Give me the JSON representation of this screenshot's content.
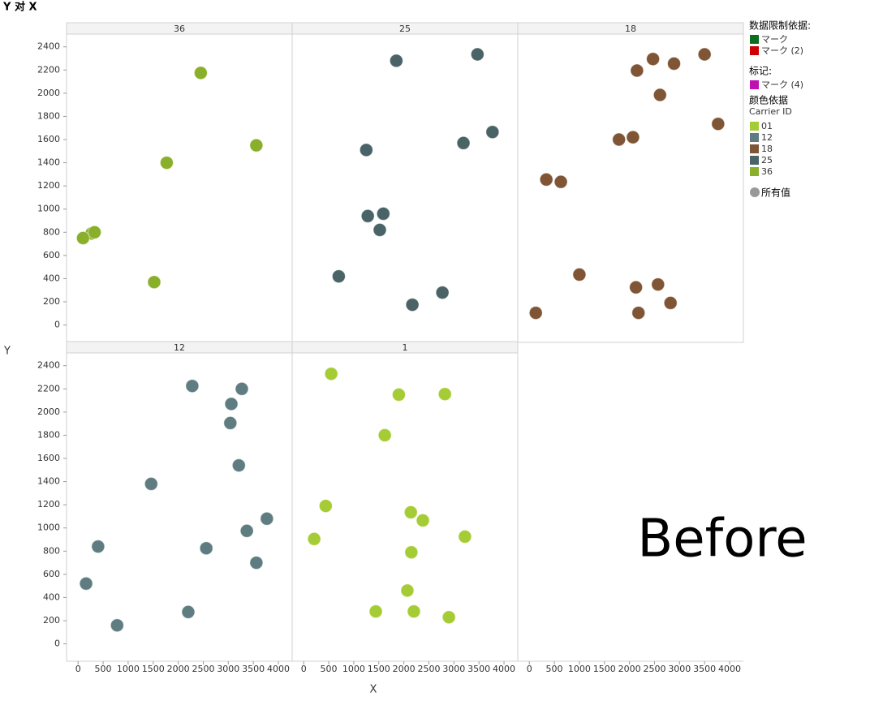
{
  "title": "Y 对 X",
  "x_label": "X",
  "y_label": "Y",
  "annotation": "Before",
  "legend": {
    "filter_title": "数据限制依据:",
    "filter_items": [
      {
        "label": "マーク",
        "color": "#0a6e1e"
      },
      {
        "label": "マーク (2)",
        "color": "#cc0000"
      }
    ],
    "mark_title": "标记:",
    "mark_items": [
      {
        "label": "マーク (4)",
        "color": "#c010b0"
      }
    ],
    "color_title": "颜色依据",
    "color_field": "Carrier ID",
    "color_items": [
      {
        "label": "01",
        "color": "#a6cc35"
      },
      {
        "label": "12",
        "color": "#5f7d80"
      },
      {
        "label": "18",
        "color": "#7f5535"
      },
      {
        "label": "25",
        "color": "#4a6366"
      },
      {
        "label": "36",
        "color": "#8aaf2a"
      }
    ],
    "all_values": {
      "label": "所有值",
      "color": "#999999"
    }
  },
  "chart_data": [
    {
      "type": "scatter",
      "title": "36",
      "color": "#8aaf2a",
      "xlim": [
        -230,
        4275
      ],
      "ylim": [
        -150,
        2510
      ],
      "yticks": [
        0,
        200,
        400,
        600,
        800,
        1000,
        1200,
        1400,
        1600,
        1800,
        2000,
        2200,
        2400
      ],
      "x": [
        2450,
        3560,
        1770,
        270,
        330,
        100,
        1520
      ],
      "values": [
        2175,
        1550,
        1400,
        790,
        800,
        750,
        370
      ]
    },
    {
      "type": "scatter",
      "title": "25",
      "color": "#4a6366",
      "xlim": [
        -230,
        4275
      ],
      "ylim": [
        -150,
        2510
      ],
      "x": [
        1850,
        3470,
        3770,
        3190,
        1250,
        1280,
        1590,
        1520,
        700,
        2770,
        2170
      ],
      "values": [
        2280,
        2335,
        1665,
        1570,
        1510,
        940,
        960,
        820,
        420,
        280,
        175
      ]
    },
    {
      "type": "scatter",
      "title": "18",
      "color": "#7f5535",
      "xlim": [
        -230,
        4275
      ],
      "ylim": [
        -150,
        2510
      ],
      "xticks": [
        0,
        500,
        1000,
        1500,
        2000,
        2500,
        3000,
        3500,
        4000
      ],
      "x": [
        3500,
        2470,
        2890,
        2150,
        2610,
        3770,
        1790,
        2070,
        340,
        630,
        1000,
        2130,
        2570,
        2820,
        2180,
        130
      ],
      "values": [
        2335,
        2295,
        2255,
        2195,
        1985,
        1735,
        1600,
        1620,
        1255,
        1235,
        435,
        325,
        350,
        190,
        105,
        105
      ]
    },
    {
      "type": "scatter",
      "title": "12",
      "color": "#5f7d80",
      "xlim": [
        -230,
        4275
      ],
      "ylim": [
        -150,
        2510
      ],
      "xticks": [
        0,
        500,
        1000,
        1500,
        2000,
        2500,
        3000,
        3500,
        4000
      ],
      "yticks": [
        0,
        200,
        400,
        600,
        800,
        1000,
        1200,
        1400,
        1600,
        1800,
        2000,
        2200,
        2400
      ],
      "x": [
        2280,
        3270,
        3060,
        3040,
        3210,
        1460,
        3770,
        3370,
        400,
        2560,
        3560,
        160,
        2200,
        780
      ],
      "values": [
        2225,
        2200,
        2070,
        1905,
        1540,
        1380,
        1080,
        975,
        840,
        825,
        700,
        520,
        275,
        160
      ]
    },
    {
      "type": "scatter",
      "title": "1",
      "color": "#a6cc35",
      "xlim": [
        -230,
        4275
      ],
      "ylim": [
        -150,
        2510
      ],
      "xticks": [
        0,
        500,
        1000,
        1500,
        2000,
        2500,
        3000,
        3500,
        4000
      ],
      "x": [
        550,
        1900,
        2820,
        1620,
        440,
        2140,
        2380,
        210,
        3220,
        2150,
        2070,
        1440,
        2200,
        2900
      ],
      "values": [
        2330,
        2150,
        2155,
        1800,
        1190,
        1135,
        1065,
        905,
        925,
        790,
        460,
        280,
        280,
        230
      ]
    }
  ]
}
